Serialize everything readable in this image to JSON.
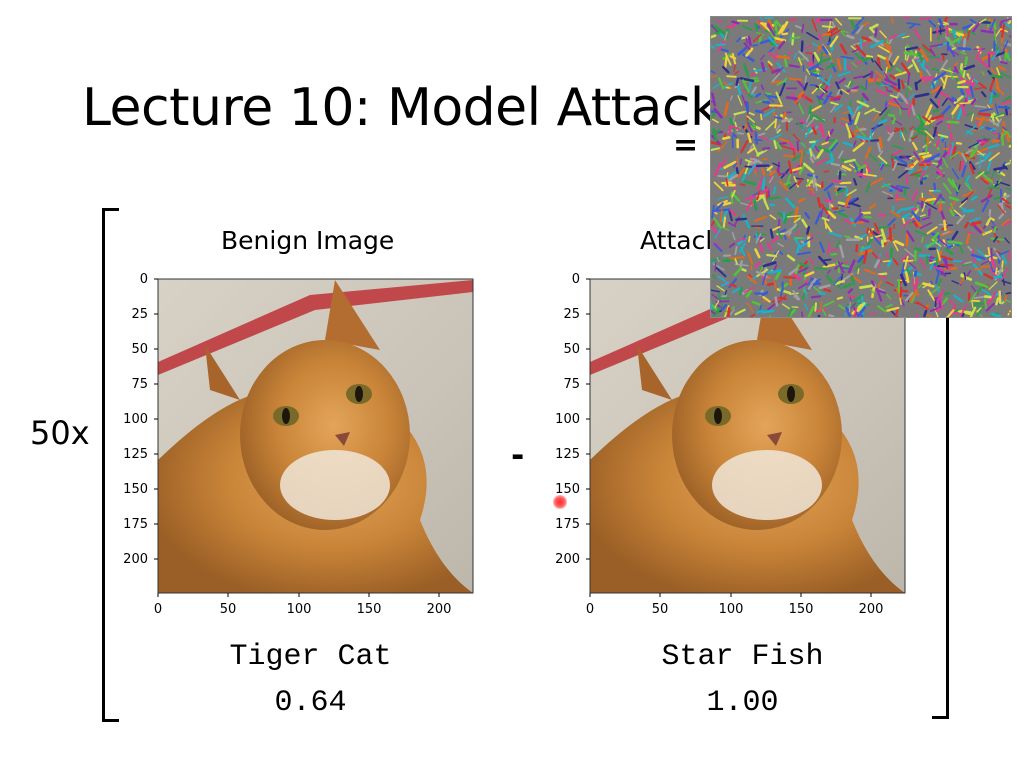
{
  "slide": {
    "title": "Lecture 10: Model Attack",
    "multiplier": "50x",
    "minus_op": "-",
    "equals_op": "="
  },
  "panels": [
    {
      "title": "Benign Image",
      "label": "Tiger Cat",
      "score": "0.64"
    },
    {
      "title": "Attacked Image",
      "label": "Star Fish",
      "score": "1.00"
    }
  ],
  "axes": {
    "y_ticks": [
      "0",
      "25",
      "50",
      "75",
      "100",
      "125",
      "150",
      "175",
      "200"
    ],
    "x_ticks": [
      "0",
      "50",
      "100",
      "150",
      "200"
    ]
  },
  "overlay": {
    "icon": "noise-perturbation-image"
  }
}
